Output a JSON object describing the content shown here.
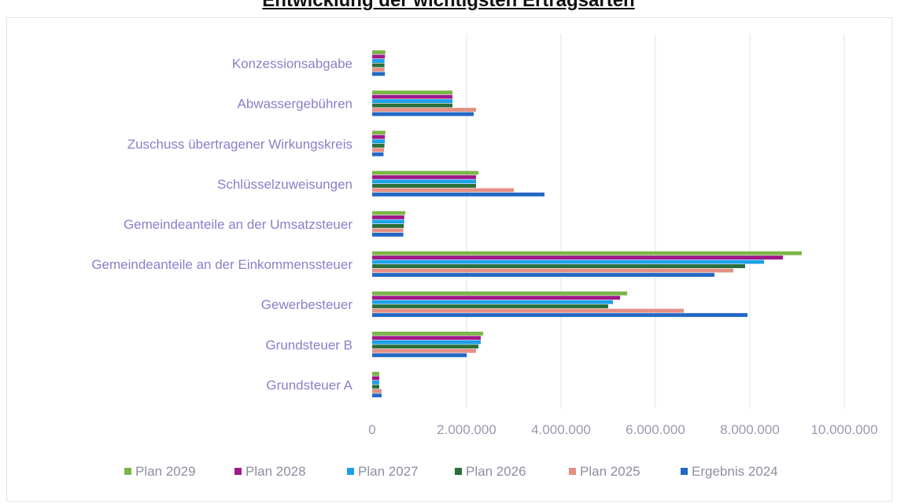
{
  "chart_data": {
    "type": "bar",
    "orientation": "horizontal",
    "title": "Entwicklung der wichtigsten Ertragsarten",
    "categories": [
      "Konzessionsabgabe",
      "Abwassergebühren",
      "Zuschuss übertragener Wirkungskreis",
      "Schlüsselzuweisungen",
      "Gemeindeanteile an der Umsatzsteuer",
      "Gemeindeanteile an der Einkommenssteuer",
      "Gewerbesteuer",
      "Grundsteuer B",
      "Grundsteuer A"
    ],
    "series": [
      {
        "name": "Plan 2029",
        "color": "#7ab648",
        "values": [
          280000,
          1700000,
          280000,
          2250000,
          700000,
          9100000,
          5400000,
          2350000,
          150000
        ]
      },
      {
        "name": "Plan 2028",
        "color": "#a0188a",
        "values": [
          270000,
          1700000,
          270000,
          2200000,
          680000,
          8700000,
          5250000,
          2300000,
          150000
        ]
      },
      {
        "name": "Plan 2027",
        "color": "#1ea0e8",
        "values": [
          260000,
          1700000,
          270000,
          2200000,
          680000,
          8300000,
          5100000,
          2300000,
          150000
        ]
      },
      {
        "name": "Plan 2026",
        "color": "#2a6e3a",
        "values": [
          260000,
          1700000,
          260000,
          2200000,
          670000,
          7900000,
          5000000,
          2250000,
          150000
        ]
      },
      {
        "name": "Plan 2025",
        "color": "#e58f84",
        "values": [
          260000,
          2200000,
          250000,
          3000000,
          660000,
          7650000,
          6600000,
          2200000,
          200000
        ]
      },
      {
        "name": "Ergebnis 2024",
        "color": "#2368c4",
        "values": [
          270000,
          2150000,
          240000,
          3650000,
          660000,
          7250000,
          7950000,
          2000000,
          200000
        ]
      }
    ],
    "xlim": [
      0,
      10000000
    ],
    "ticks": [
      {
        "value": 0,
        "label": "0"
      },
      {
        "value": 2000000,
        "label": "2.000.000"
      },
      {
        "value": 4000000,
        "label": "4.000.000"
      },
      {
        "value": 6000000,
        "label": "6.000.000"
      },
      {
        "value": 8000000,
        "label": "8.000.000"
      },
      {
        "value": 10000000,
        "label": "10.000.000"
      }
    ],
    "grid": true,
    "legend_position": "bottom"
  }
}
